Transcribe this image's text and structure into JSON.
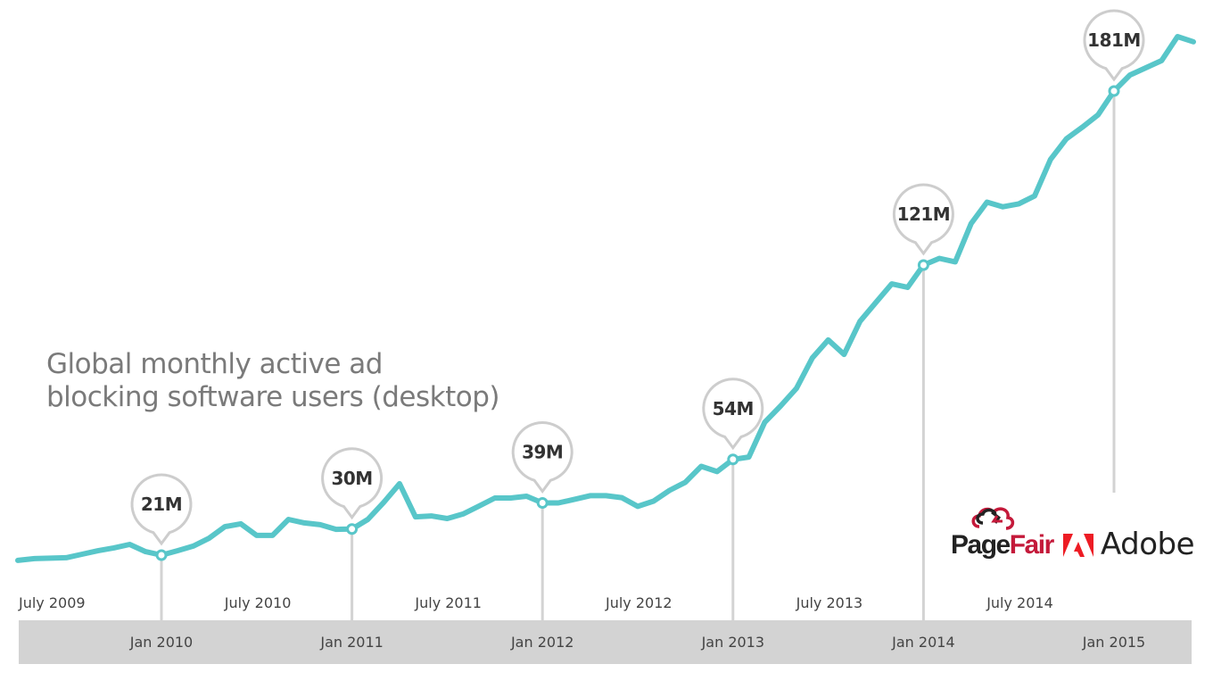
{
  "colors": {
    "line": "#58c6c9",
    "callout_border": "#cdcdcd",
    "callout_text": "#333333",
    "stem": "#d3d3d3",
    "axis_band": "#d3d3d3",
    "axis_text": "#444444",
    "title": "#7a7a7a",
    "pagefair_red": "#c4193a",
    "adobe_red": "#ed1c24"
  },
  "logos": {
    "pagefair": {
      "part1": "Page",
      "part2": "Fair"
    },
    "adobe": {
      "label": "Adobe"
    }
  },
  "chart_data": {
    "type": "line",
    "title": "Global monthly active ad blocking software users (desktop)",
    "title_lines": [
      "Global monthly active ad",
      "blocking software users (desktop)"
    ],
    "xlabel": "",
    "ylabel": "",
    "unit": "millions",
    "grid": false,
    "legend": "none",
    "x_range_months_from_jan2010": [
      -9,
      63
    ],
    "ylim": [
      17,
      186
    ],
    "x_ticks_top": [
      {
        "label": "July 2009",
        "month": -6
      },
      {
        "label": "July 2010",
        "month": 6
      },
      {
        "label": "July 2011",
        "month": 18
      },
      {
        "label": "July 2012",
        "month": 30
      },
      {
        "label": "July 2013",
        "month": 42
      },
      {
        "label": "July 2014",
        "month": 54
      }
    ],
    "x_ticks_bottom": [
      {
        "label": "Jan 2010",
        "month": 0
      },
      {
        "label": "Jan 2011",
        "month": 12
      },
      {
        "label": "Jan 2012",
        "month": 24
      },
      {
        "label": "Jan 2013",
        "month": 36
      },
      {
        "label": "Jan 2014",
        "month": 48
      },
      {
        "label": "Jan 2015",
        "month": 60
      }
    ],
    "series": [
      {
        "name": "Monthly active ad blocking users (millions)",
        "x": [
          -9,
          -8,
          -6,
          -5,
          -4,
          -3,
          -2,
          -1,
          0,
          1,
          2,
          3,
          4,
          5,
          6,
          7,
          8,
          9,
          10,
          11,
          12,
          13,
          14,
          15,
          16,
          17,
          18,
          19,
          20,
          21,
          22,
          23,
          24,
          25,
          26,
          27,
          28,
          29,
          30,
          31,
          32,
          33,
          34,
          35,
          36,
          37,
          38,
          39,
          40,
          41,
          42,
          43,
          44,
          45,
          46,
          47,
          48,
          49,
          50,
          51,
          52,
          53,
          54,
          55,
          56,
          57,
          58,
          59,
          60,
          61,
          62,
          63,
          64,
          65
        ],
        "values": [
          19.2,
          19.8,
          20.1,
          21.3,
          22.5,
          23.5,
          24.7,
          22.2,
          21.0,
          22.5,
          24.1,
          26.8,
          30.8,
          31.8,
          27.8,
          27.8,
          33.3,
          32.1,
          31.5,
          29.9,
          30.0,
          33.3,
          39.2,
          45.6,
          34.2,
          34.5,
          33.6,
          35.2,
          37.9,
          40.7,
          40.7,
          41.3,
          39.0,
          39.0,
          40.2,
          41.5,
          41.5,
          40.8,
          37.8,
          39.6,
          43.3,
          46.1,
          51.6,
          49.8,
          54.0,
          54.8,
          66.8,
          72.4,
          78.5,
          89.0,
          95.2,
          90.2,
          101.6,
          108.1,
          114.5,
          113.3,
          121.0,
          123.3,
          122.1,
          135.3,
          142.7,
          141.1,
          142.1,
          144.8,
          157.4,
          164.5,
          168.5,
          172.8,
          181.0,
          186.5,
          189.0,
          191.5,
          199.8,
          198.0
        ],
        "color": "#58c6c9"
      }
    ],
    "annotations": [
      {
        "label": "21M",
        "month": 0,
        "value": 21
      },
      {
        "label": "30M",
        "month": 12,
        "value": 30
      },
      {
        "label": "39M",
        "month": 24,
        "value": 39
      },
      {
        "label": "54M",
        "month": 36,
        "value": 54
      },
      {
        "label": "121M",
        "month": 48,
        "value": 121
      },
      {
        "label": "181M",
        "month": 60,
        "value": 181
      }
    ]
  }
}
